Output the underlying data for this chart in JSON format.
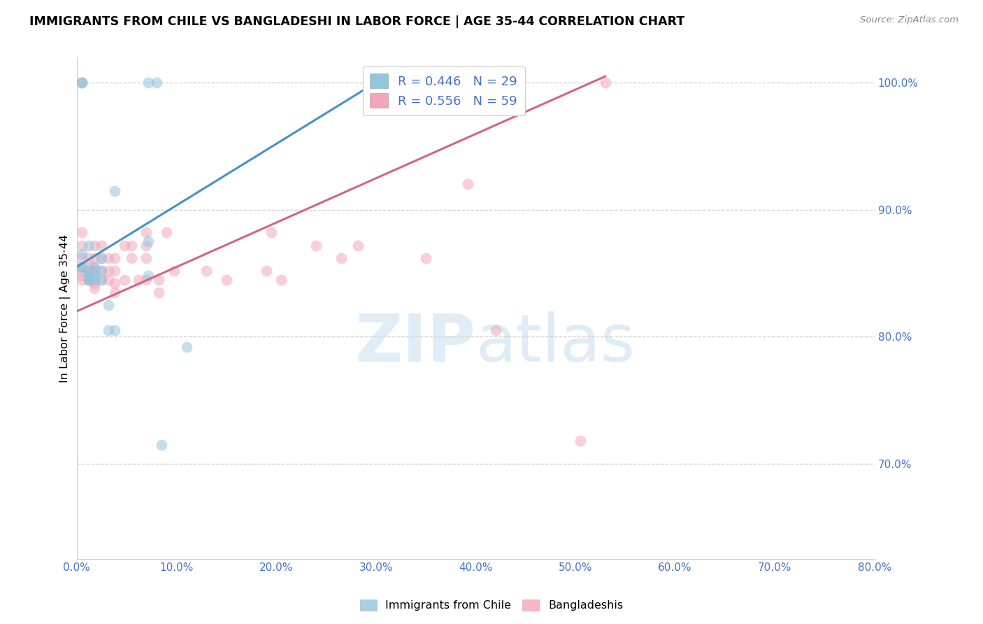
{
  "title": "IMMIGRANTS FROM CHILE VS BANGLADESHI IN LABOR FORCE | AGE 35-44 CORRELATION CHART",
  "source": "Source: ZipAtlas.com",
  "ylabel_left": "In Labor Force | Age 35-44",
  "y_right_ticks": [
    "70.0%",
    "80.0%",
    "90.0%",
    "100.0%"
  ],
  "x_ticks": [
    0.0,
    10.0,
    20.0,
    30.0,
    40.0,
    50.0,
    60.0,
    70.0,
    80.0
  ],
  "y_ticks_right": [
    0.7,
    0.8,
    0.9,
    1.0
  ],
  "xlim": [
    0.0,
    0.8
  ],
  "ylim": [
    0.625,
    1.02
  ],
  "legend_label1": "Immigrants from Chile",
  "legend_label2": "Bangladeshis",
  "blue_color": "#92c5de",
  "pink_color": "#f4a6b8",
  "blue_line_color": "#4393c3",
  "pink_line_color": "#d6628a",
  "watermark_zip": "ZIP",
  "watermark_atlas": "atlas",
  "blue_scatter_x": [
    0.005,
    0.005,
    0.005,
    0.005,
    0.005,
    0.012,
    0.012,
    0.012,
    0.012,
    0.012,
    0.012,
    0.018,
    0.018,
    0.018,
    0.018,
    0.025,
    0.025,
    0.025,
    0.032,
    0.032,
    0.038,
    0.038,
    0.072,
    0.072,
    0.072,
    0.08,
    0.085,
    0.11,
    0.31
  ],
  "blue_scatter_y": [
    0.855,
    0.855,
    0.865,
    1.0,
    1.0,
    0.845,
    0.845,
    0.848,
    0.848,
    0.852,
    0.872,
    0.845,
    0.848,
    0.852,
    0.855,
    0.845,
    0.852,
    0.862,
    0.805,
    0.825,
    0.805,
    0.915,
    0.848,
    0.875,
    1.0,
    1.0,
    0.715,
    0.792,
    1.0
  ],
  "pink_scatter_x": [
    0.005,
    0.005,
    0.005,
    0.005,
    0.005,
    0.005,
    0.005,
    0.005,
    0.012,
    0.012,
    0.012,
    0.012,
    0.012,
    0.012,
    0.012,
    0.018,
    0.018,
    0.018,
    0.018,
    0.018,
    0.018,
    0.018,
    0.025,
    0.025,
    0.025,
    0.025,
    0.032,
    0.032,
    0.032,
    0.038,
    0.038,
    0.038,
    0.038,
    0.048,
    0.048,
    0.055,
    0.055,
    0.062,
    0.07,
    0.07,
    0.07,
    0.07,
    0.082,
    0.082,
    0.09,
    0.098,
    0.13,
    0.15,
    0.19,
    0.195,
    0.205,
    0.24,
    0.265,
    0.282,
    0.35,
    0.392,
    0.42,
    0.505,
    0.53
  ],
  "pink_scatter_y": [
    0.845,
    0.848,
    0.852,
    0.855,
    0.862,
    0.872,
    0.882,
    1.0,
    0.845,
    0.845,
    0.848,
    0.852,
    0.852,
    0.855,
    0.862,
    0.838,
    0.842,
    0.845,
    0.852,
    0.855,
    0.862,
    0.872,
    0.845,
    0.852,
    0.862,
    0.872,
    0.845,
    0.852,
    0.862,
    0.835,
    0.842,
    0.852,
    0.862,
    0.845,
    0.872,
    0.862,
    0.872,
    0.845,
    0.845,
    0.862,
    0.872,
    0.882,
    0.835,
    0.845,
    0.882,
    0.852,
    0.852,
    0.845,
    0.852,
    0.882,
    0.845,
    0.872,
    0.862,
    0.872,
    0.862,
    0.92,
    0.805,
    0.718,
    1.0
  ],
  "blue_line_x0": 0.0,
  "blue_line_y0": 0.855,
  "blue_line_x1": 0.31,
  "blue_line_y1": 1.005,
  "pink_line_x0": 0.0,
  "pink_line_y0": 0.82,
  "pink_line_x1": 0.53,
  "pink_line_y1": 1.005
}
